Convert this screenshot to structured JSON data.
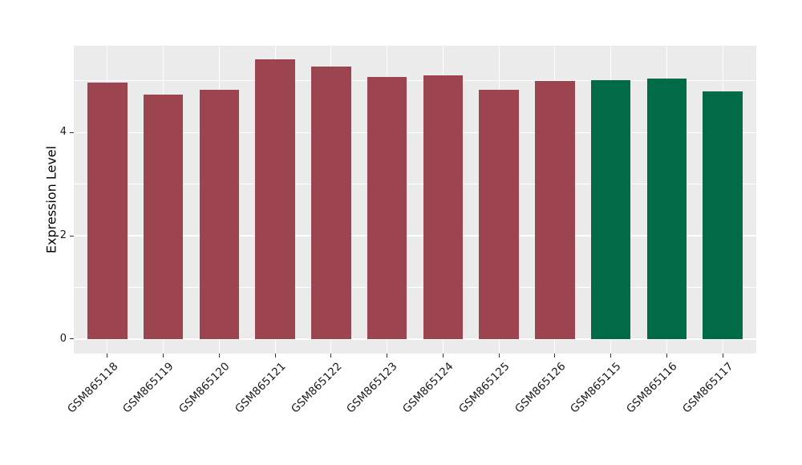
{
  "chart_data": {
    "type": "bar",
    "title": "",
    "xlabel": "",
    "ylabel": "Expression Level",
    "categories": [
      "GSM865118",
      "GSM865119",
      "GSM865120",
      "GSM865121",
      "GSM865122",
      "GSM865123",
      "GSM865124",
      "GSM865125",
      "GSM865126",
      "GSM865115",
      "GSM865116",
      "GSM865117"
    ],
    "values": [
      4.96,
      4.74,
      4.82,
      5.42,
      5.28,
      5.07,
      5.11,
      4.83,
      5.0,
      5.02,
      5.04,
      4.8
    ],
    "bar_colors": [
      "#9C4450",
      "#9C4450",
      "#9C4450",
      "#9C4450",
      "#9C4450",
      "#9C4450",
      "#9C4450",
      "#9C4450",
      "#9C4450",
      "#006B46",
      "#006B46",
      "#006B46"
    ],
    "group_colors": {
      "maroon": "#9C4450",
      "green": "#006B46"
    },
    "yticks": [
      0,
      2,
      4
    ],
    "yticks_minor": [
      1,
      3,
      5
    ],
    "ylim": [
      -0.28,
      5.68
    ],
    "x_tick_rotation": -45,
    "grid": true,
    "legend": "none",
    "panel_background": "#EBEBEB",
    "grid_color": "#FFFFFF",
    "tick_color": "#333333",
    "text_color": "#1a1a1a"
  }
}
